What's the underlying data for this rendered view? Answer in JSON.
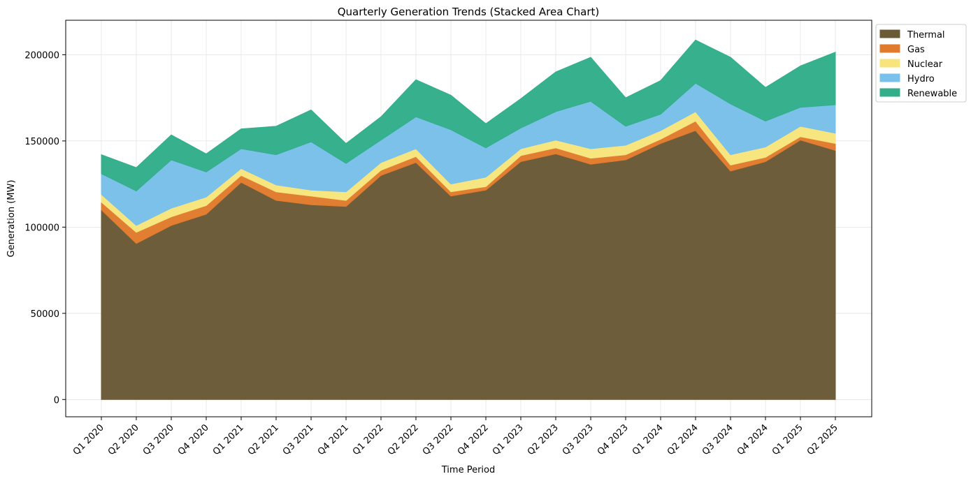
{
  "chart_data": {
    "type": "area",
    "stacked": true,
    "title": "Quarterly Generation Trends (Stacked Area Chart)",
    "xlabel": "Time Period",
    "ylabel": "Generation (MW)",
    "ylim": [
      -10000,
      220000
    ],
    "yticks": [
      0,
      50000,
      100000,
      150000,
      200000
    ],
    "grid": true,
    "legend_position": "top-right (outside plot)",
    "categories": [
      "Q1 2020",
      "Q2 2020",
      "Q3 2020",
      "Q4 2020",
      "Q1 2021",
      "Q2 2021",
      "Q3 2021",
      "Q4 2021",
      "Q1 2022",
      "Q2 2022",
      "Q3 2022",
      "Q4 2022",
      "Q1 2023",
      "Q2 2023",
      "Q3 2023",
      "Q4 2023",
      "Q1 2024",
      "Q2 2024",
      "Q3 2024",
      "Q4 2024",
      "Q1 2025",
      "Q2 2025"
    ],
    "series": [
      {
        "name": "Thermal",
        "color": "#6b5a36",
        "values": [
          110000,
          90500,
          101000,
          107500,
          126000,
          115500,
          113000,
          112000,
          130000,
          137500,
          118000,
          121500,
          138000,
          142500,
          136500,
          139000,
          148500,
          156000,
          132500,
          138000,
          150500,
          144500
        ]
      },
      {
        "name": "Gas",
        "color": "#e07b2e",
        "values": [
          4500,
          6500,
          5000,
          5000,
          4000,
          5000,
          5000,
          3500,
          3000,
          3500,
          2500,
          2000,
          3500,
          3500,
          3500,
          3000,
          2500,
          5500,
          3500,
          2500,
          2000,
          4000
        ]
      },
      {
        "name": "Nuclear",
        "color": "#f7e47c",
        "values": [
          4500,
          4000,
          5000,
          5000,
          4000,
          4000,
          3500,
          5000,
          4500,
          4500,
          4500,
          5500,
          4000,
          4500,
          5500,
          5500,
          5000,
          5500,
          6000,
          6000,
          6000,
          6000
        ]
      },
      {
        "name": "Hydro",
        "color": "#79c0ea",
        "values": [
          12000,
          20000,
          28000,
          14500,
          11500,
          17500,
          28000,
          16500,
          13000,
          18500,
          31500,
          17000,
          12000,
          16500,
          27500,
          11000,
          9500,
          16500,
          29500,
          15000,
          11000,
          16500
        ]
      },
      {
        "name": "Renewable",
        "color": "#33ae8b",
        "values": [
          11000,
          13500,
          14500,
          10500,
          11500,
          16500,
          18500,
          11500,
          13500,
          21500,
          20000,
          14000,
          17000,
          23000,
          25500,
          16500,
          19500,
          25000,
          27000,
          19500,
          24000,
          30500
        ]
      }
    ]
  }
}
